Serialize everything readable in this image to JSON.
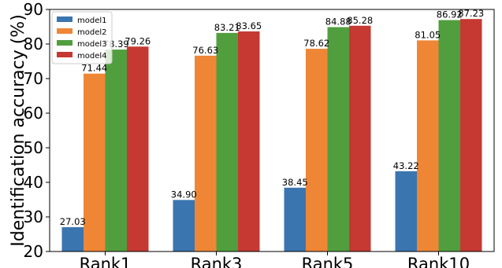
{
  "chart_data": {
    "type": "bar",
    "title": "",
    "xlabel": "",
    "ylabel": "Identification accuracy (%)",
    "ylim": [
      20,
      90
    ],
    "yticks": [
      20,
      30,
      40,
      50,
      60,
      70,
      80,
      90
    ],
    "grid": false,
    "legend_position": "top-left",
    "categories": [
      "Rank1",
      "Rank3",
      "Rank5",
      "Rank10"
    ],
    "series": [
      {
        "name": "model1",
        "color": "#3a75b0",
        "values": [
          27.03,
          34.9,
          38.45,
          43.22
        ],
        "labels": [
          "27.03",
          "34.90",
          "38.45",
          "43.22"
        ]
      },
      {
        "name": "model2",
        "color": "#ef8636",
        "values": [
          71.44,
          76.63,
          78.62,
          81.05
        ],
        "labels": [
          "71.44",
          "76.63",
          "78.62",
          "81.05"
        ]
      },
      {
        "name": "model3",
        "color": "#519e3e",
        "values": [
          78.39,
          83.21,
          84.88,
          86.92
        ],
        "labels": [
          "78.39",
          "83.21",
          "84.88",
          "86.92"
        ]
      },
      {
        "name": "model4",
        "color": "#c53932",
        "values": [
          79.26,
          83.65,
          85.28,
          87.23
        ],
        "labels": [
          "79.26",
          "83.65",
          "85.28",
          "87.23"
        ]
      }
    ]
  }
}
